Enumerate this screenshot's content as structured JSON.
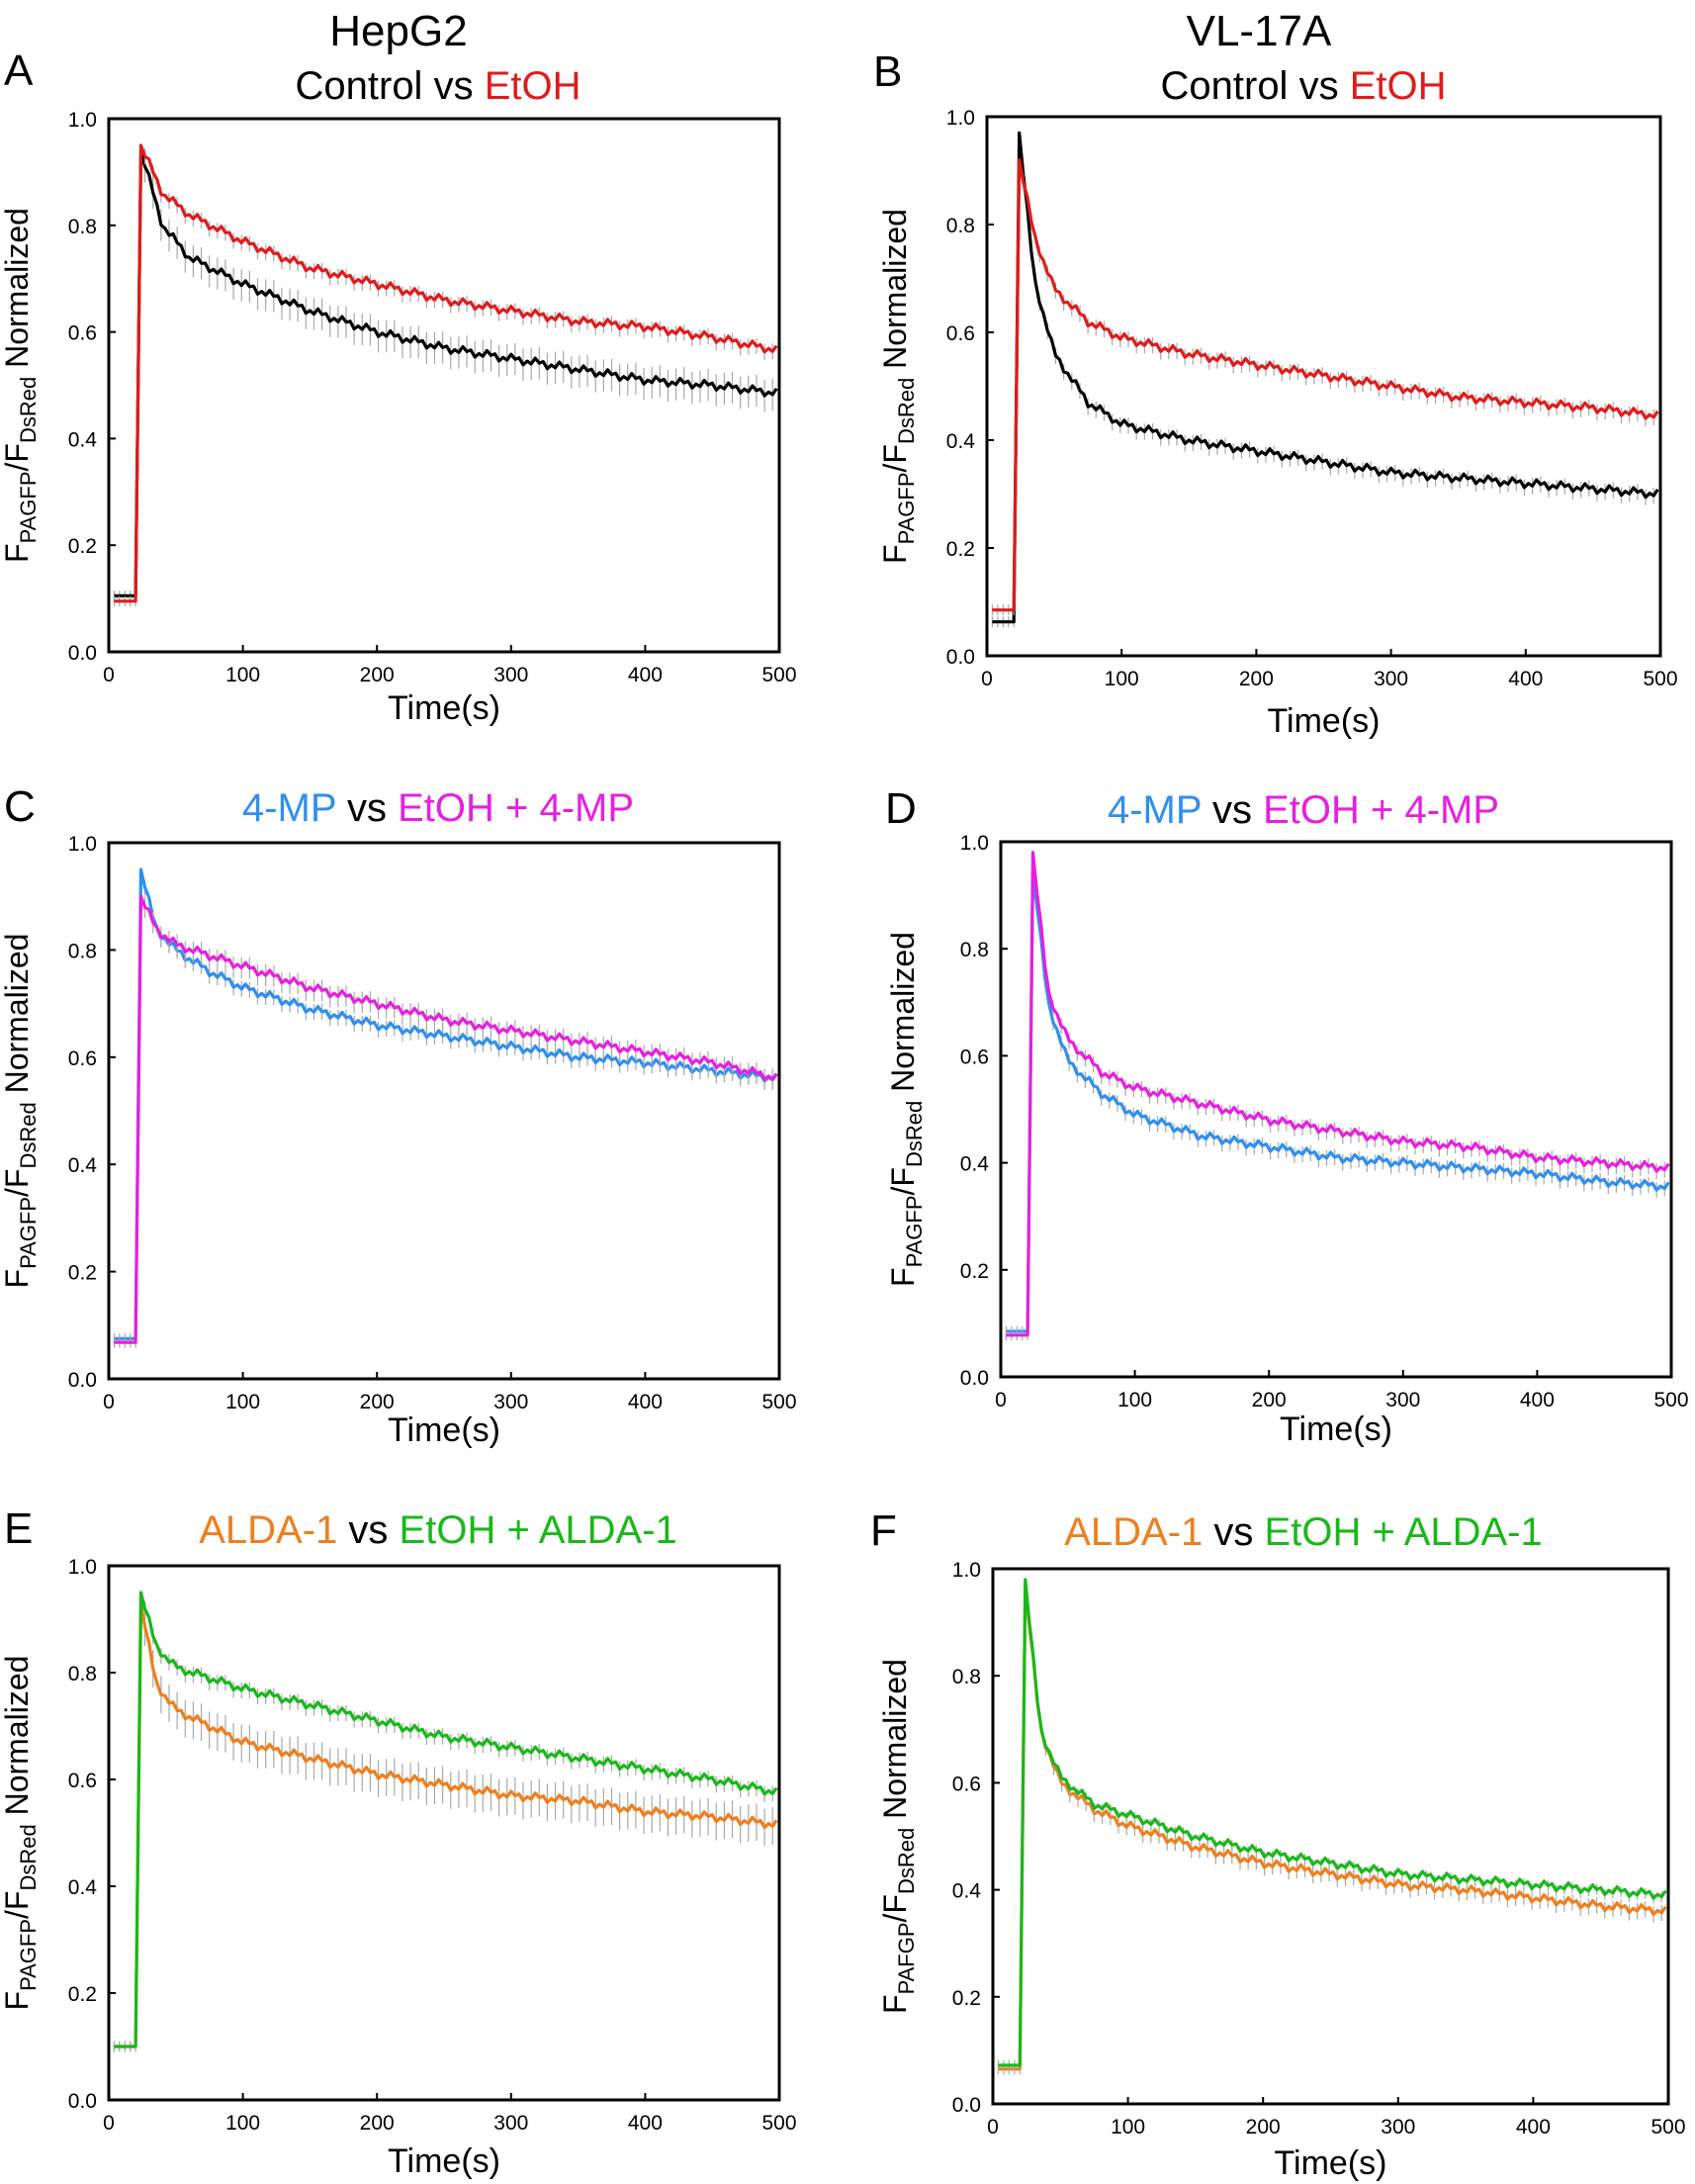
{
  "figure": {
    "column_headers": [
      "HepG2",
      "VL-17A"
    ]
  },
  "colors": {
    "black": "#000000",
    "red": "#e01b1b",
    "blue": "#2f8ff0",
    "magenta": "#e81ee0",
    "orange": "#f07e1c",
    "green": "#19b819",
    "error_bar": "#a8a8a8"
  },
  "chart_data": [
    {
      "panel": "A",
      "type": "line",
      "title_parts": [
        {
          "text": "Control",
          "color": "black"
        },
        {
          "text": " vs ",
          "color": "black"
        },
        {
          "text": "EtOH",
          "color": "red"
        }
      ],
      "xlabel": "Time(s)",
      "ylabel_parts": [
        "F",
        "PAGFP",
        "/F",
        "DsRed",
        " Normalized"
      ],
      "xlim": [
        0,
        500
      ],
      "ylim": [
        0,
        1.0
      ],
      "xticks": [
        "0",
        "100",
        "200",
        "300",
        "400",
        "500"
      ],
      "yticks": [
        "0.0",
        "0.2",
        "0.4",
        "0.6",
        "0.8",
        "1.0"
      ],
      "series": [
        {
          "name": "Control",
          "color": "black",
          "baseline": 0.105,
          "peak_time": 24,
          "peak": 0.94,
          "x": [
            24,
            40,
            60,
            100,
            150,
            200,
            250,
            300,
            350,
            400,
            450,
            500
          ],
          "y": [
            0.94,
            0.8,
            0.74,
            0.69,
            0.64,
            0.6,
            0.57,
            0.55,
            0.53,
            0.51,
            0.5,
            0.485
          ],
          "err": 0.03
        },
        {
          "name": "EtOH",
          "color": "red",
          "baseline": 0.095,
          "peak_time": 24,
          "peak": 0.95,
          "x": [
            24,
            40,
            60,
            100,
            150,
            200,
            250,
            300,
            350,
            400,
            450,
            500
          ],
          "y": [
            0.95,
            0.86,
            0.82,
            0.77,
            0.72,
            0.69,
            0.66,
            0.64,
            0.62,
            0.61,
            0.59,
            0.565
          ],
          "err": 0.015
        }
      ]
    },
    {
      "panel": "B",
      "type": "line",
      "title_parts": [
        {
          "text": "Control",
          "color": "black"
        },
        {
          "text": " vs ",
          "color": "black"
        },
        {
          "text": "EtOH",
          "color": "red"
        }
      ],
      "xlabel": "Time(s)",
      "ylabel_parts": [
        "F",
        "PAGFP",
        "/F",
        "DsRed",
        " Normalized"
      ],
      "xlim": [
        0,
        500
      ],
      "ylim": [
        0,
        1.0
      ],
      "xticks": [
        "0",
        "100",
        "200",
        "300",
        "400",
        "500"
      ],
      "yticks": [
        "0.0",
        "0.2",
        "0.4",
        "0.6",
        "0.8",
        "1.0"
      ],
      "series": [
        {
          "name": "Control",
          "color": "black",
          "baseline": 0.063,
          "peak_time": 24,
          "peak": 0.97,
          "x": [
            24,
            35,
            50,
            75,
            100,
            150,
            200,
            250,
            300,
            350,
            400,
            450,
            500
          ],
          "y": [
            0.97,
            0.7,
            0.56,
            0.47,
            0.43,
            0.4,
            0.38,
            0.36,
            0.34,
            0.33,
            0.32,
            0.31,
            0.3
          ],
          "err": 0.015
        },
        {
          "name": "EtOH",
          "color": "red",
          "baseline": 0.085,
          "peak_time": 24,
          "peak": 0.92,
          "x": [
            24,
            35,
            50,
            75,
            100,
            150,
            200,
            250,
            300,
            350,
            400,
            450,
            500
          ],
          "y": [
            0.92,
            0.78,
            0.68,
            0.62,
            0.59,
            0.56,
            0.54,
            0.52,
            0.5,
            0.48,
            0.47,
            0.46,
            0.445
          ],
          "err": 0.015
        }
      ]
    },
    {
      "panel": "C",
      "type": "line",
      "title_parts": [
        {
          "text": "4-MP",
          "color": "blue"
        },
        {
          "text": " vs ",
          "color": "black"
        },
        {
          "text": "EtOH + 4-MP",
          "color": "magenta"
        }
      ],
      "xlabel": "Time(s)",
      "ylabel_parts": [
        "F",
        "PAGFP",
        "/F",
        "DsRed",
        " Normalized"
      ],
      "xlim": [
        0,
        500
      ],
      "ylim": [
        0,
        1.0
      ],
      "xticks": [
        "0",
        "100",
        "200",
        "300",
        "400",
        "500"
      ],
      "yticks": [
        "0.0",
        "0.2",
        "0.4",
        "0.6",
        "0.8",
        "1.0"
      ],
      "series": [
        {
          "name": "4-MP",
          "color": "blue",
          "baseline": 0.075,
          "peak_time": 24,
          "peak": 0.95,
          "x": [
            24,
            35,
            50,
            75,
            100,
            150,
            200,
            250,
            300,
            350,
            400,
            450,
            500
          ],
          "y": [
            0.95,
            0.84,
            0.8,
            0.76,
            0.73,
            0.69,
            0.66,
            0.64,
            0.62,
            0.6,
            0.59,
            0.575,
            0.56
          ],
          "err": 0.015
        },
        {
          "name": "EtOH + 4-MP",
          "color": "magenta",
          "baseline": 0.068,
          "peak_time": 24,
          "peak": 0.9,
          "x": [
            24,
            35,
            50,
            75,
            100,
            150,
            200,
            250,
            300,
            350,
            400,
            450,
            500
          ],
          "y": [
            0.9,
            0.84,
            0.81,
            0.79,
            0.77,
            0.73,
            0.7,
            0.67,
            0.65,
            0.63,
            0.61,
            0.59,
            0.56
          ],
          "err": 0.02
        }
      ]
    },
    {
      "panel": "D",
      "type": "line",
      "title_parts": [
        {
          "text": "4-MP",
          "color": "blue"
        },
        {
          "text": " vs ",
          "color": "black"
        },
        {
          "text": "EtOH + 4-MP",
          "color": "magenta"
        }
      ],
      "xlabel": "Time(s)",
      "ylabel_parts": [
        "F",
        "PAGFP",
        "/F",
        "DsRed",
        " Normalized"
      ],
      "xlim": [
        0,
        500
      ],
      "ylim": [
        0,
        1.0
      ],
      "xticks": [
        "0",
        "100",
        "200",
        "300",
        "400",
        "500"
      ],
      "yticks": [
        "0.0",
        "0.2",
        "0.4",
        "0.6",
        "0.8",
        "1.0"
      ],
      "series": [
        {
          "name": "4-MP",
          "color": "blue",
          "baseline": 0.085,
          "peak_time": 24,
          "peak": 0.95,
          "x": [
            24,
            35,
            50,
            75,
            100,
            150,
            200,
            250,
            300,
            350,
            400,
            450,
            500
          ],
          "y": [
            0.95,
            0.7,
            0.59,
            0.53,
            0.49,
            0.45,
            0.43,
            0.41,
            0.4,
            0.39,
            0.38,
            0.365,
            0.355
          ],
          "err": 0.015
        },
        {
          "name": "EtOH + 4-MP",
          "color": "magenta",
          "baseline": 0.078,
          "peak_time": 24,
          "peak": 0.98,
          "x": [
            24,
            35,
            50,
            75,
            100,
            150,
            200,
            250,
            300,
            350,
            400,
            450,
            500
          ],
          "y": [
            0.98,
            0.72,
            0.63,
            0.57,
            0.54,
            0.51,
            0.48,
            0.46,
            0.44,
            0.43,
            0.41,
            0.4,
            0.39
          ],
          "err": 0.015
        }
      ]
    },
    {
      "panel": "E",
      "type": "line",
      "title_parts": [
        {
          "text": "ALDA-1",
          "color": "orange"
        },
        {
          "text": " vs ",
          "color": "black"
        },
        {
          "text": "EtOH + ALDA-1",
          "color": "green"
        }
      ],
      "xlabel": "Time(s)",
      "ylabel_parts": [
        "F",
        "PAGFP",
        "/F",
        "DsRed",
        " Normalized"
      ],
      "xlim": [
        0,
        500
      ],
      "ylim": [
        0,
        1.0
      ],
      "xticks": [
        "0",
        "100",
        "200",
        "300",
        "400",
        "500"
      ],
      "yticks": [
        "0.0",
        "0.2",
        "0.4",
        "0.6",
        "0.8",
        "1.0"
      ],
      "series": [
        {
          "name": "ALDA-1",
          "color": "orange",
          "baseline": 0.1,
          "peak_time": 24,
          "peak": 0.93,
          "x": [
            24,
            35,
            50,
            75,
            100,
            150,
            200,
            250,
            300,
            350,
            400,
            450,
            500
          ],
          "y": [
            0.93,
            0.78,
            0.73,
            0.7,
            0.67,
            0.64,
            0.61,
            0.59,
            0.57,
            0.56,
            0.54,
            0.53,
            0.515
          ],
          "err": 0.035
        },
        {
          "name": "EtOH + ALDA-1",
          "color": "green",
          "baseline": 0.1,
          "peak_time": 24,
          "peak": 0.95,
          "x": [
            24,
            35,
            50,
            75,
            100,
            150,
            200,
            250,
            300,
            350,
            400,
            450,
            500
          ],
          "y": [
            0.95,
            0.85,
            0.81,
            0.79,
            0.77,
            0.74,
            0.71,
            0.68,
            0.66,
            0.64,
            0.62,
            0.6,
            0.575
          ],
          "err": 0.015
        }
      ]
    },
    {
      "panel": "F",
      "type": "line",
      "title_parts": [
        {
          "text": "ALDA-1",
          "color": "orange"
        },
        {
          "text": " vs ",
          "color": "black"
        },
        {
          "text": "EtOH + ALDA-1",
          "color": "green"
        }
      ],
      "xlabel": "Time(s)",
      "ylabel_parts": [
        "F",
        "PAFGP",
        "/F",
        "DsRed",
        " Normalized"
      ],
      "xlim": [
        0,
        500
      ],
      "ylim": [
        0,
        1.0
      ],
      "xticks": [
        "0",
        "100",
        "200",
        "300",
        "400",
        "500"
      ],
      "yticks": [
        "0.0",
        "0.2",
        "0.4",
        "0.6",
        "0.8",
        "1.0"
      ],
      "series": [
        {
          "name": "ALDA-1",
          "color": "orange",
          "baseline": 0.065,
          "peak_time": 24,
          "peak": 0.97,
          "x": [
            24,
            35,
            50,
            75,
            100,
            150,
            200,
            250,
            300,
            350,
            400,
            450,
            500
          ],
          "y": [
            0.97,
            0.7,
            0.6,
            0.55,
            0.52,
            0.48,
            0.45,
            0.43,
            0.41,
            0.4,
            0.385,
            0.37,
            0.36
          ],
          "err": 0.015
        },
        {
          "name": "EtOH + ALDA-1",
          "color": "green",
          "baseline": 0.072,
          "peak_time": 24,
          "peak": 0.98,
          "x": [
            24,
            35,
            50,
            75,
            100,
            150,
            200,
            250,
            300,
            350,
            400,
            450,
            500
          ],
          "y": [
            0.98,
            0.7,
            0.61,
            0.56,
            0.54,
            0.5,
            0.47,
            0.45,
            0.43,
            0.42,
            0.41,
            0.4,
            0.39
          ],
          "err": 0.01
        }
      ]
    }
  ]
}
